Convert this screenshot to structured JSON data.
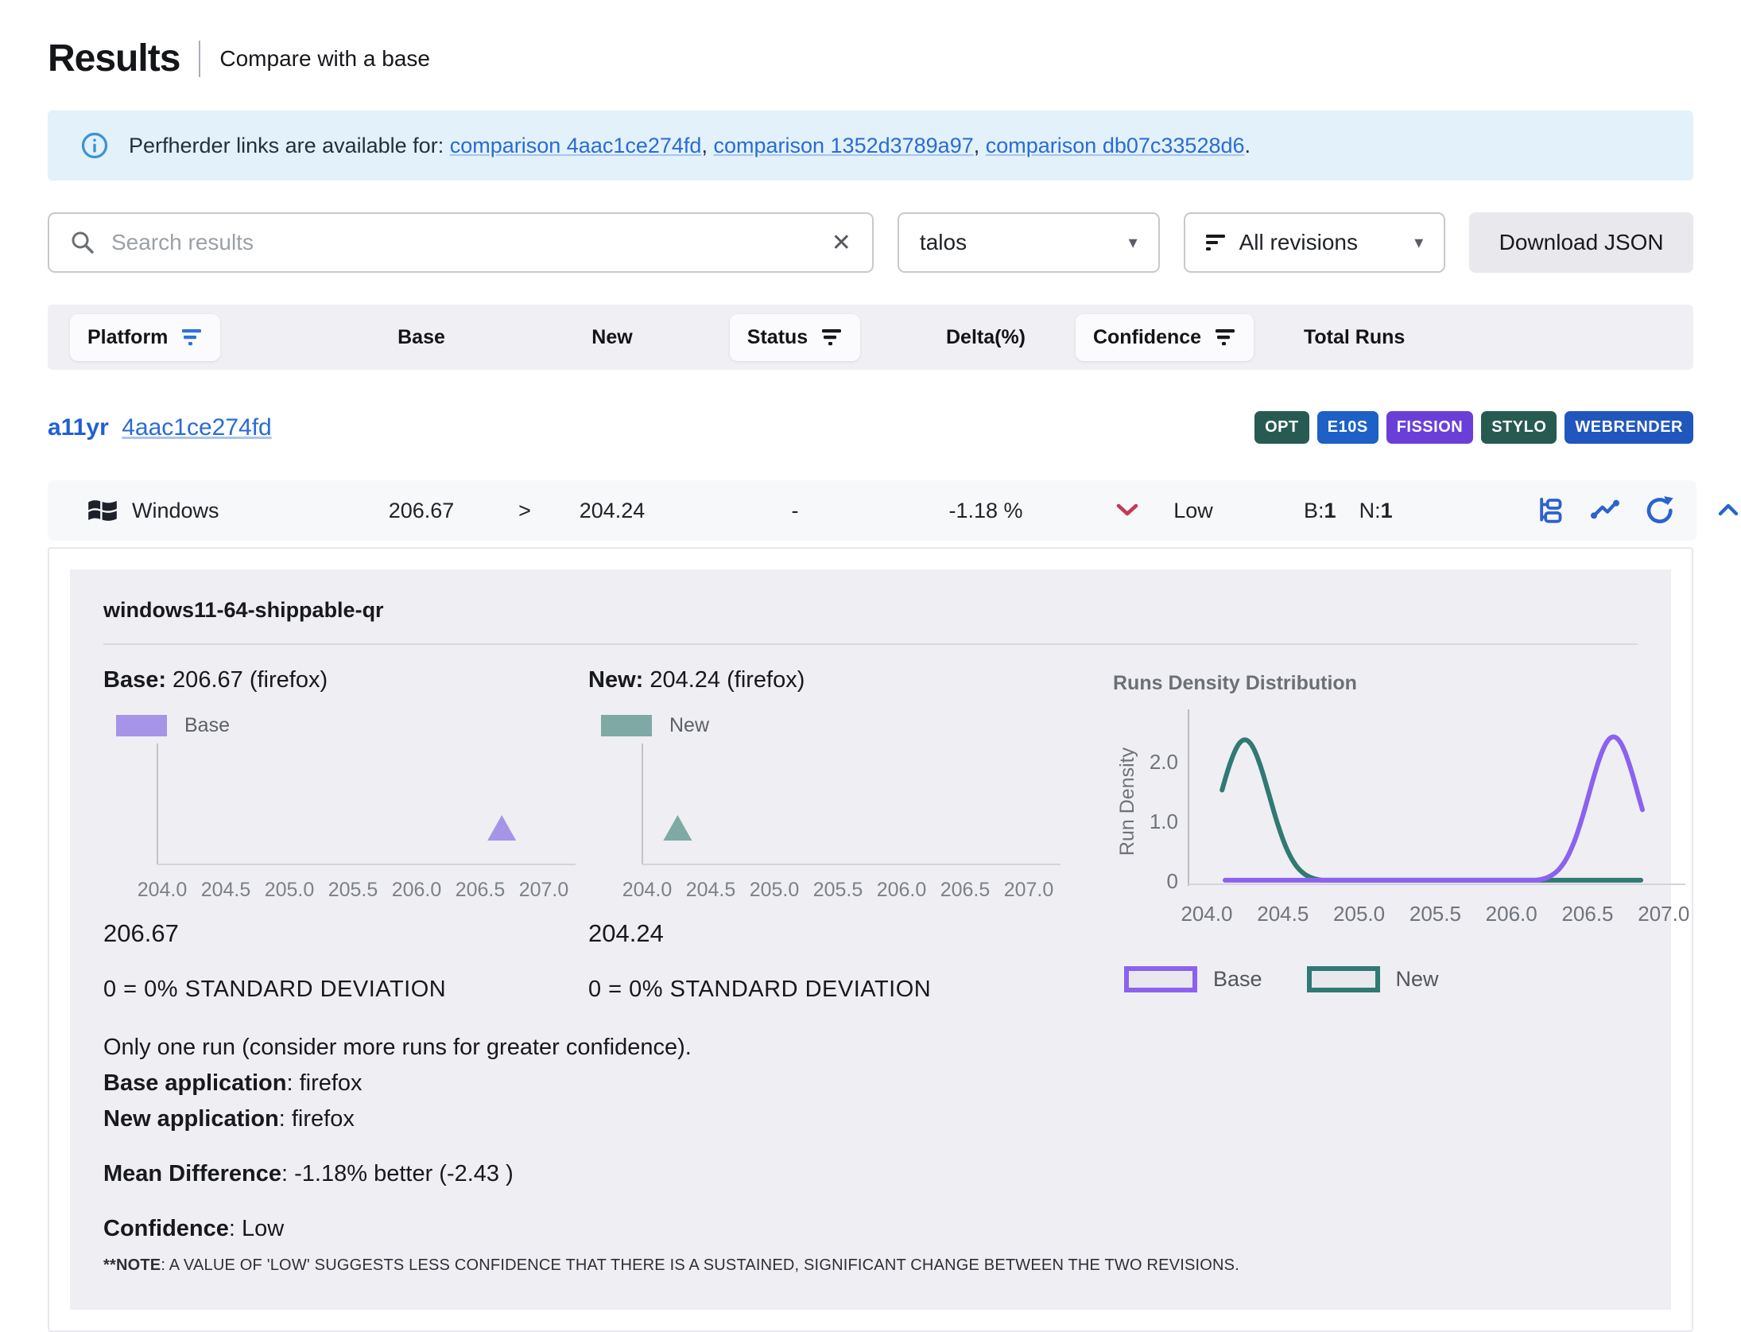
{
  "header": {
    "title": "Results",
    "subtitle": "Compare with a base"
  },
  "banner": {
    "text": "Perfherder links are available for:",
    "links": [
      "comparison 4aac1ce274fd",
      "comparison 1352d3789a97",
      "comparison db07c33528d6"
    ],
    "comma": ",",
    "period": "."
  },
  "controls": {
    "search_placeholder": "Search results",
    "clear_icon": "✕",
    "caret_icon": "▾",
    "framework_value": "talos",
    "revisions_value": "All revisions",
    "download_label": "Download JSON"
  },
  "table_header": {
    "platform": "Platform",
    "base": "Base",
    "new": "New",
    "status": "Status",
    "delta": "Delta(%)",
    "confidence": "Confidence",
    "total_runs": "Total Runs"
  },
  "test_row": {
    "suite": "a11yr",
    "revision": "4aac1ce274fd",
    "badges": [
      {
        "label": "OPT",
        "color": "#275b52"
      },
      {
        "label": "E10S",
        "color": "#1d60c6"
      },
      {
        "label": "FISSION",
        "color": "#6a3fd8"
      },
      {
        "label": "STYLO",
        "color": "#275b52"
      },
      {
        "label": "WEBRENDER",
        "color": "#2156bd"
      }
    ]
  },
  "result_row": {
    "platform": "Windows",
    "base": "206.67",
    "arrow": ">",
    "new": "204.24",
    "status": "-",
    "delta": "-1.18 %",
    "confidence": "Low",
    "runs_b_label": "B:",
    "runs_b": "1",
    "runs_n_label": "N:",
    "runs_n": "1"
  },
  "detail": {
    "subtest": "windows11-64-shippable-qr",
    "base_label": "Base:",
    "base_value": " 206.67 (firefox)",
    "new_label": "New:",
    "new_value": " 204.24 (firefox)",
    "base_legend": "Base",
    "new_legend": "New",
    "base_point_value": "206.67",
    "new_point_value": "204.24",
    "base_stddev": "0 = 0% STANDARD DEVIATION",
    "new_stddev": "0 = 0% STANDARD DEVIATION",
    "density_title": "Runs Density Distribution",
    "density_ylabel": "Run Density",
    "runs_note": "Only one run (consider more runs for greater confidence).",
    "base_app_label": "Base application",
    "base_app_value": ": firefox",
    "new_app_label": "New application",
    "new_app_value": ": firefox",
    "mean_diff_label": "Mean Difference",
    "mean_diff_value": ": -1.18% better (-2.43 )",
    "confidence_label": "Confidence",
    "confidence_value": ": Low",
    "note_label": "**NOTE",
    "note_value": ": A VALUE OF 'LOW' SUGGESTS LESS CONFIDENCE THAT THERE IS A SUSTAINED, SIGNIFICANT CHANGE BETWEEN THE TWO REVISIONS."
  },
  "chart_data": [
    {
      "id": "base-mini",
      "type": "scatter",
      "title": "",
      "xlabel": "",
      "ylabel": "",
      "xlim": [
        204,
        207
      ],
      "xticks": [
        204.0,
        204.5,
        205.0,
        205.5,
        206.0,
        206.5,
        207.0
      ],
      "xtick_labels": [
        "204.0",
        "204.5",
        "205.0",
        "205.5",
        "206.0",
        "206.5",
        "207.0"
      ],
      "series": [
        {
          "name": "Base",
          "marker": "triangle",
          "color": "#a695e6",
          "x": [
            206.67
          ]
        }
      ]
    },
    {
      "id": "new-mini",
      "type": "scatter",
      "title": "",
      "xlabel": "",
      "ylabel": "",
      "xlim": [
        204,
        207
      ],
      "xticks": [
        204.0,
        204.5,
        205.0,
        205.5,
        206.0,
        206.5,
        207.0
      ],
      "xtick_labels": [
        "204.0",
        "204.5",
        "205.0",
        "205.5",
        "206.0",
        "206.5",
        "207.0"
      ],
      "series": [
        {
          "name": "New",
          "marker": "triangle",
          "color": "#7fa9a5",
          "x": [
            204.24
          ]
        }
      ]
    },
    {
      "id": "density",
      "type": "line",
      "title": "Runs Density Distribution",
      "xlabel": "",
      "ylabel": "Run Density",
      "xlim": [
        203.95,
        207.1
      ],
      "ylim": [
        0,
        2.6
      ],
      "xticks": [
        204.0,
        204.5,
        205.0,
        205.5,
        206.0,
        206.5,
        207.0
      ],
      "xtick_labels": [
        "204.0",
        "204.5",
        "205.0",
        "205.5",
        "206.0",
        "206.5",
        "207.0"
      ],
      "yticks": [
        0,
        1.0,
        2.0
      ],
      "ytick_labels": [
        "0",
        "1.0",
        "2.0"
      ],
      "grid": false,
      "legend_position": "bottom",
      "series": [
        {
          "name": "New",
          "color": "#2f7a72",
          "mean": 204.25,
          "sigma": 0.16,
          "amp": 2.37,
          "x_start": 204.1,
          "x_end": 206.85
        },
        {
          "name": "Base",
          "color": "#8b62ef",
          "mean": 206.67,
          "sigma": 0.16,
          "amp": 2.42,
          "x_start": 204.12,
          "x_end": 206.86
        }
      ],
      "legend": [
        {
          "label": "Base",
          "color": "#8b62ef"
        },
        {
          "label": "New",
          "color": "#2f7a72"
        }
      ]
    }
  ]
}
